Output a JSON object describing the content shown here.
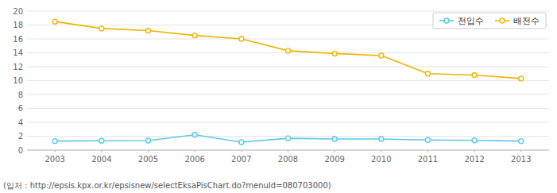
{
  "chart_data": {
    "type": "line",
    "x": [
      2003,
      2004,
      2005,
      2006,
      2007,
      2008,
      2009,
      2010,
      2011,
      2012,
      2013
    ],
    "xlim": [
      2002.4,
      2013.6
    ],
    "xticks": [
      2003,
      2004,
      2005,
      2006,
      2007,
      2008,
      2009,
      2010,
      2011,
      2012,
      2013
    ],
    "ylim": [
      0,
      20
    ],
    "yticks": [
      0,
      2,
      4,
      6,
      8,
      10,
      12,
      14,
      16,
      18,
      20
    ],
    "grid": true,
    "legend": "upper right",
    "marker": "circle",
    "series": [
      {
        "name": "전입수",
        "color": "#5bc8e8",
        "values": [
          1.3,
          1.35,
          1.38,
          2.2,
          1.15,
          1.7,
          1.6,
          1.6,
          1.45,
          1.4,
          1.3
        ]
      },
      {
        "name": "배전수",
        "color": "#f0b400",
        "values": [
          18.5,
          17.5,
          17.2,
          16.5,
          16.0,
          14.3,
          13.9,
          13.6,
          11.0,
          10.8,
          10.3
        ]
      }
    ],
    "caption": "(입처 : http://epsis.kpx.or.kr/epsisnew/selectEksaPisChart.do?menuId=080703000)"
  }
}
